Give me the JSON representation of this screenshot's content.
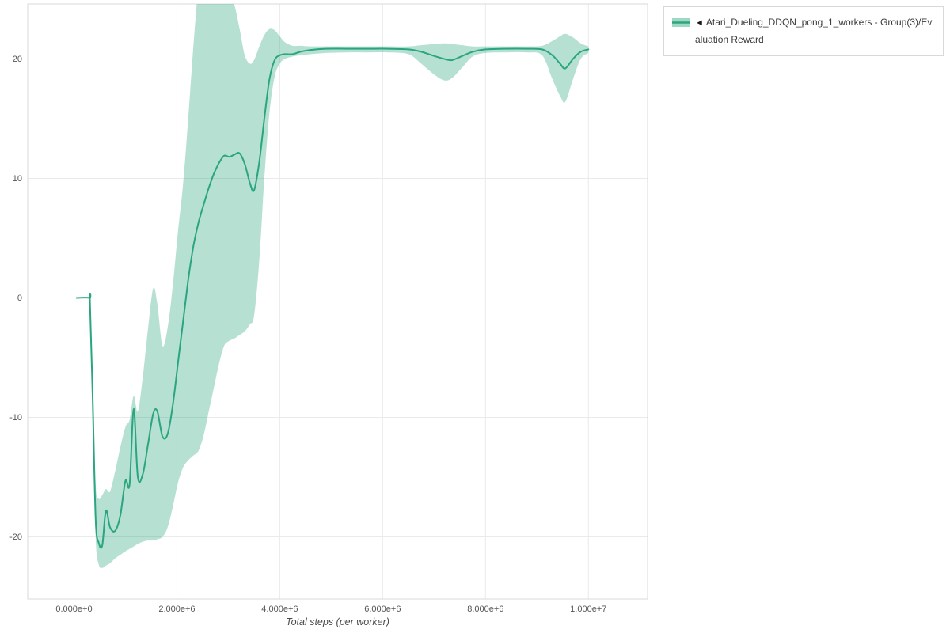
{
  "legend": {
    "toggle_icon": "◄",
    "label": "Atari_Dueling_DDQN_pong_1_workers - Group(3)/Evaluation Reward"
  },
  "chart_data": {
    "type": "line",
    "title": "",
    "xlabel": "Total steps (per worker)",
    "ylabel": "",
    "grid": true,
    "legend_position": "top-right-outside",
    "xlim": [
      -900000,
      11150000
    ],
    "ylim": [
      -25.2,
      24.6
    ],
    "x_ticks": {
      "values": [
        0,
        2000000,
        4000000,
        6000000,
        8000000,
        10000000
      ],
      "labels": [
        "0.000e+0",
        "2.000e+6",
        "4.000e+6",
        "6.000e+6",
        "8.000e+6",
        "1.000e+7"
      ]
    },
    "y_ticks": {
      "values": [
        -20,
        -10,
        0,
        10,
        20
      ],
      "labels": [
        "-20",
        "-10",
        "0",
        "10",
        "20"
      ]
    },
    "series": [
      {
        "name": "Atari_Dueling_DDQN_pong_1_workers - Group(3)/Evaluation Reward",
        "x": [
          50000,
          300000,
          310000,
          360000,
          420000,
          480000,
          550000,
          620000,
          700000,
          800000,
          900000,
          1000000,
          1080000,
          1160000,
          1240000,
          1340000,
          1440000,
          1540000,
          1620000,
          1720000,
          1820000,
          1920000,
          2020000,
          2120000,
          2220000,
          2320000,
          2420000,
          2520000,
          2620000,
          2720000,
          2820000,
          2920000,
          3020000,
          3120000,
          3220000,
          3320000,
          3420000,
          3500000,
          3600000,
          3700000,
          3800000,
          3900000,
          4000000,
          4100000,
          4250000,
          4400000,
          4600000,
          4900000,
          5300000,
          5700000,
          6100000,
          6500000,
          6750000,
          7000000,
          7200000,
          7350000,
          7550000,
          7750000,
          8000000,
          8400000,
          8800000,
          9100000,
          9300000,
          9450000,
          9550000,
          9700000,
          9850000,
          10000000
        ],
        "mean": [
          0,
          0,
          -0.3,
          -8,
          -18.5,
          -20.5,
          -20.7,
          -17.8,
          -19.2,
          -19.5,
          -18.2,
          -15.3,
          -15.6,
          -9.3,
          -15.0,
          -14.7,
          -12.2,
          -9.7,
          -9.5,
          -11.6,
          -11.4,
          -9.0,
          -5.5,
          -2.0,
          1.5,
          4.3,
          6.3,
          7.8,
          9.2,
          10.4,
          11.3,
          11.9,
          11.8,
          12.0,
          12.1,
          11.2,
          9.6,
          9.0,
          11.3,
          15.0,
          18.3,
          19.9,
          20.3,
          20.4,
          20.4,
          20.6,
          20.75,
          20.85,
          20.85,
          20.85,
          20.85,
          20.8,
          20.6,
          20.25,
          20.0,
          19.9,
          20.25,
          20.6,
          20.8,
          20.85,
          20.85,
          20.8,
          20.3,
          19.6,
          19.2,
          20.0,
          20.6,
          20.8
        ],
        "band_lo": [
          0,
          0,
          -0.5,
          -9.5,
          -20,
          -22.3,
          -22.6,
          -22.4,
          -22.2,
          -21.8,
          -21.5,
          -21.2,
          -21.0,
          -20.8,
          -20.6,
          -20.4,
          -20.3,
          -20.3,
          -20.2,
          -20.0,
          -19.2,
          -17.5,
          -15.5,
          -14.2,
          -13.6,
          -13.2,
          -12.8,
          -11.5,
          -9.5,
          -7.5,
          -5.5,
          -4.0,
          -3.6,
          -3.4,
          -3.1,
          -2.8,
          -2.2,
          -1.5,
          3.0,
          10.0,
          15.5,
          18.5,
          19.6,
          20.0,
          20.2,
          20.3,
          20.4,
          20.5,
          20.55,
          20.55,
          20.55,
          20.4,
          19.6,
          18.7,
          18.2,
          18.4,
          19.3,
          20.2,
          20.5,
          20.55,
          20.55,
          20.3,
          18.3,
          16.9,
          16.4,
          18.3,
          20.0,
          20.5
        ],
        "band_hi": [
          0,
          0,
          -0.1,
          -6,
          -15.5,
          -16.8,
          -16.5,
          -16.0,
          -16.2,
          -14.5,
          -12.5,
          -10.8,
          -10.2,
          -8.2,
          -9.5,
          -6.5,
          -2.5,
          0.8,
          -0.5,
          -4.0,
          -2.5,
          1.0,
          5.5,
          9.5,
          15.0,
          21.0,
          26.0,
          27.5,
          28.0,
          27.8,
          27.0,
          26.3,
          25.6,
          24.5,
          22.5,
          20.3,
          19.6,
          19.9,
          21.0,
          22.0,
          22.5,
          22.4,
          21.9,
          21.4,
          21.1,
          21.1,
          21.05,
          21.05,
          21.05,
          21.05,
          21.05,
          21.05,
          21.15,
          21.25,
          21.3,
          21.25,
          21.15,
          21.05,
          21.05,
          21.05,
          21.05,
          21.1,
          21.5,
          21.9,
          22.1,
          21.8,
          21.3,
          21.05
        ]
      }
    ],
    "colors": {
      "line": "#2aa57f",
      "band": "rgba(42,165,127,0.35)",
      "legend_swatch_fill": "#9ed8c3",
      "grid": "#e9eaec",
      "border": "#d8dadc",
      "axis_text": "#555555"
    }
  }
}
